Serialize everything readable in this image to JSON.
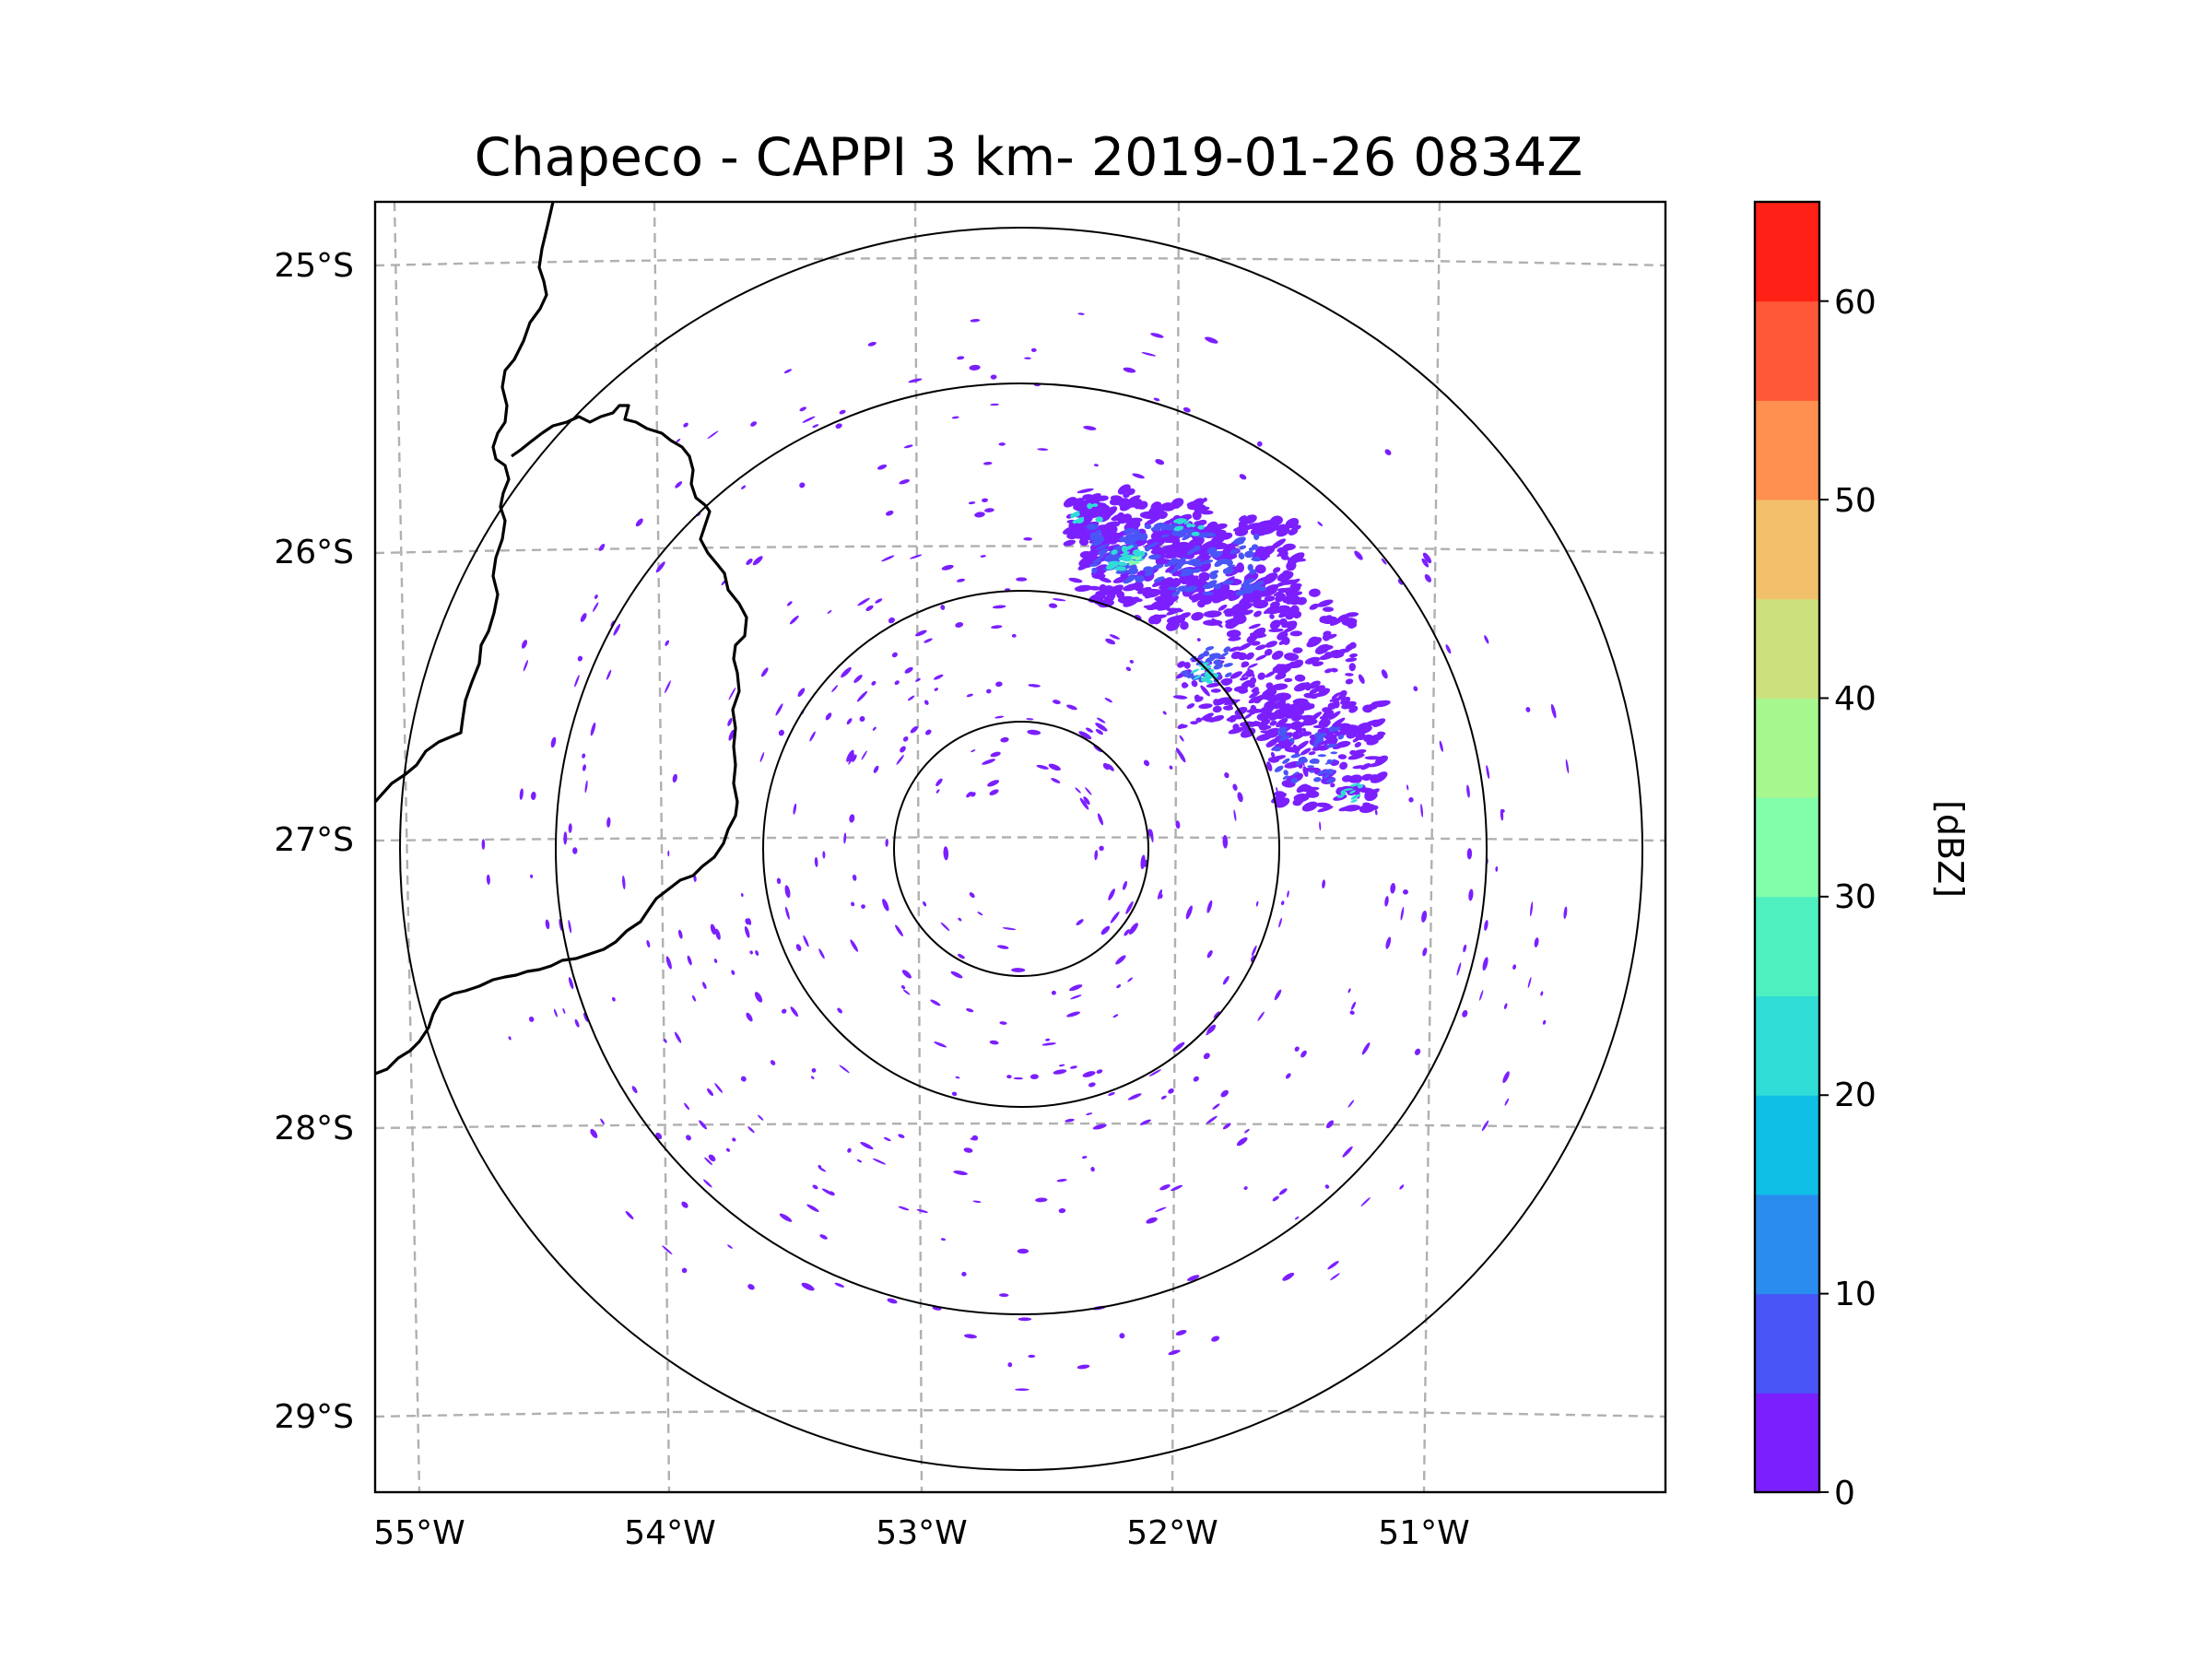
{
  "title": "Chapeco - CAPPI 3 km- 2019-01-26 0834Z",
  "map": {
    "lat_ticks": [
      "25°S",
      "26°S",
      "27°S",
      "28°S",
      "29°S"
    ],
    "lon_ticks": [
      "55°W",
      "54°W",
      "53°W",
      "52°W",
      "51°W"
    ],
    "range_rings_count": 4,
    "gridline_color": "#b0b0b0"
  },
  "colorbar": {
    "label": "[dBZ]",
    "tick_labels": [
      "0",
      "10",
      "20",
      "30",
      "40",
      "50",
      "60"
    ],
    "levels": [
      0,
      5,
      10,
      15,
      20,
      25,
      30,
      35,
      40,
      45,
      50,
      55,
      60,
      65
    ],
    "colors": [
      "#7b1fff",
      "#4a55f7",
      "#2a8cef",
      "#0fbfe6",
      "#30dcd6",
      "#4ef0c0",
      "#82fdaa",
      "#a6f78e",
      "#cde07e",
      "#f2c06a",
      "#ff9050",
      "#ff5838",
      "#ff2016"
    ]
  },
  "echo_colors": {
    "weak": "#7b1fff",
    "moderate": "#4a55f7",
    "core": "#30dcd6",
    "strong_core": "#82fdaa"
  }
}
